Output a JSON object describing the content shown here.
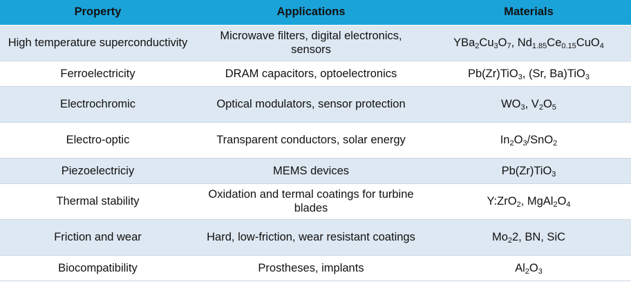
{
  "table": {
    "headers": [
      "Property",
      "Applications",
      "Materials"
    ],
    "rows": [
      {
        "property": "High temperature superconductivity",
        "applications": "Microwave filters, digital electronics, sensors",
        "materials": [
          [
            "YBa",
            ""
          ],
          [
            "2",
            "sub"
          ],
          [
            "Cu",
            ""
          ],
          [
            "3",
            "sub"
          ],
          [
            "O",
            ""
          ],
          [
            "7",
            "sub"
          ],
          [
            ", Nd",
            ""
          ],
          [
            "1.85",
            "sub"
          ],
          [
            "Ce",
            ""
          ],
          [
            "0.15",
            "sub"
          ],
          [
            "CuO",
            ""
          ],
          [
            "4",
            "sub"
          ]
        ]
      },
      {
        "property": "Ferroelectricity",
        "applications": "DRAM capacitors, optoelectronics",
        "materials": [
          [
            "Pb(Zr)TiO",
            ""
          ],
          [
            "3",
            "sub"
          ],
          [
            ", (Sr, Ba)TiO",
            ""
          ],
          [
            "3",
            "sub"
          ]
        ]
      },
      {
        "property": "Electrochromic",
        "applications": "Optical modulators, sensor protection",
        "materials": [
          [
            "WO",
            ""
          ],
          [
            "3",
            "sub"
          ],
          [
            ", V",
            ""
          ],
          [
            "2",
            "sub"
          ],
          [
            "O",
            ""
          ],
          [
            "5",
            "sub"
          ]
        ]
      },
      {
        "property": "Electro-optic",
        "applications": "Transparent conductors, solar energy",
        "materials": [
          [
            "In",
            ""
          ],
          [
            "2",
            "sub"
          ],
          [
            "O",
            ""
          ],
          [
            "3",
            "sub"
          ],
          [
            "/SnO",
            ""
          ],
          [
            "2",
            "sub"
          ]
        ]
      },
      {
        "property": "Piezoelectriciy",
        "applications": "MEMS devices",
        "materials": [
          [
            "Pb(Zr)TiO",
            ""
          ],
          [
            "3",
            "sub"
          ]
        ]
      },
      {
        "property": "Thermal stability",
        "applications": "Oxidation and termal coatings for turbine blades",
        "materials": [
          [
            "Y:ZrO",
            ""
          ],
          [
            "2",
            "sub"
          ],
          [
            ", MgAl",
            ""
          ],
          [
            "2",
            "sub"
          ],
          [
            "O",
            ""
          ],
          [
            "4",
            "sub"
          ]
        ]
      },
      {
        "property": "Friction and wear",
        "applications": "Hard, low-friction, wear resistant coatings",
        "materials": [
          [
            "Mo",
            ""
          ],
          [
            "2",
            "sub"
          ],
          [
            "2, BN, SiC",
            ""
          ]
        ]
      },
      {
        "property": "Biocompatibility",
        "applications": "Prostheses, implants",
        "materials": [
          [
            "Al",
            ""
          ],
          [
            "2",
            "sub"
          ],
          [
            "O",
            ""
          ],
          [
            "3",
            "sub"
          ]
        ]
      }
    ]
  },
  "colors": {
    "header_bg": "#1aa3d9",
    "band_bg": "#dde8f2",
    "plain_bg": "#ffffff"
  }
}
